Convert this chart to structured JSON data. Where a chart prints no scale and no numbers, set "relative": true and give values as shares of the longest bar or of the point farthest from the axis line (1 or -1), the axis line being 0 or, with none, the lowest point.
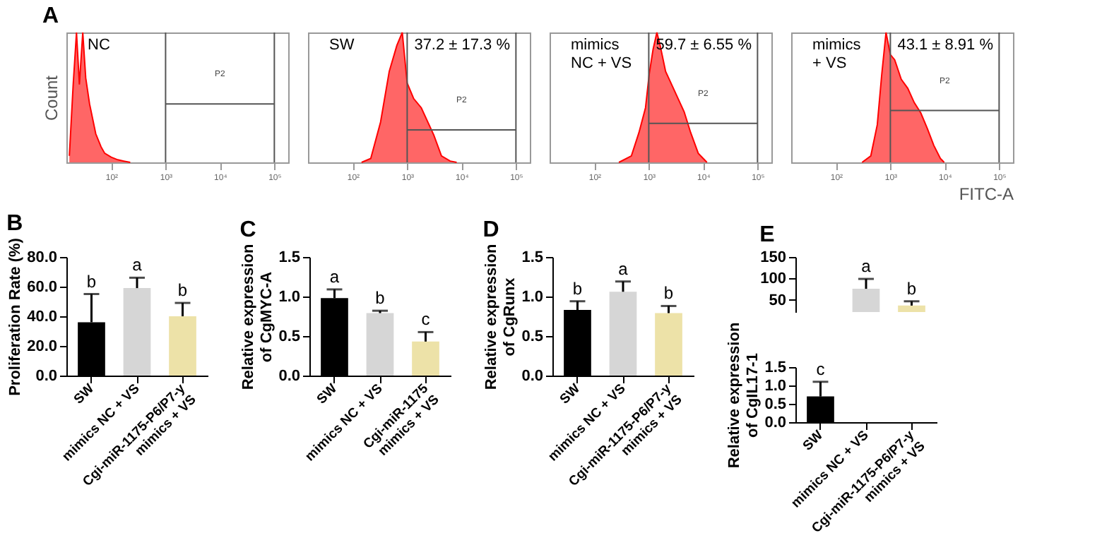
{
  "chart_data": [
    {
      "type": "area",
      "title": "A",
      "ylabel": "Count",
      "log": "x",
      "relative": true,
      "xlim": [
        15,
        180000
      ],
      "xticks": [
        {
          "value": 100,
          "label": "10²"
        },
        {
          "value": 1000,
          "label": "10³"
        },
        {
          "value": 10000,
          "label": "10⁴"
        },
        {
          "value": 100000,
          "label": "10⁵"
        }
      ],
      "x": [
        17,
        20,
        23,
        26,
        30,
        34,
        40,
        52,
        65,
        76,
        100,
        132,
        170,
        224
      ],
      "series": [
        {
          "color": "#ff0000",
          "values": [
            0.05,
            0.6,
            1.0,
            0.6,
            1.0,
            0.65,
            0.45,
            0.22,
            0.12,
            0.07,
            0.04,
            0.02,
            0.01,
            0.0
          ]
        }
      ],
      "ref_lines": [
        {
          "axis": "x",
          "value": 1000,
          "label": null
        },
        {
          "axis": "x",
          "value": 100000,
          "label": null
        },
        {
          "axis": "y",
          "value": 0.45,
          "label": "P2"
        }
      ],
      "annotations": [
        "NC"
      ]
    },
    {
      "type": "area",
      "log": "x",
      "relative": true,
      "xlim": [
        15,
        180000
      ],
      "xticks": [
        {
          "value": 100,
          "label": "10²"
        },
        {
          "value": 1000,
          "label": "10³"
        },
        {
          "value": 10000,
          "label": "10⁴"
        },
        {
          "value": 100000,
          "label": "10⁵"
        }
      ],
      "x": [
        145,
        214,
        324,
        468,
        646,
        813,
        1000,
        1320,
        1820,
        2340,
        3090,
        4270,
        6170,
        8130
      ],
      "series": [
        {
          "color": "#ff0000",
          "values": [
            0.0,
            0.03,
            0.31,
            0.7,
            0.9,
            1.0,
            0.61,
            0.49,
            0.42,
            0.32,
            0.21,
            0.05,
            0.01,
            0.0
          ]
        }
      ],
      "ref_lines": [
        {
          "axis": "x",
          "value": 1000,
          "label": null
        },
        {
          "axis": "x",
          "value": 100000,
          "label": null
        },
        {
          "axis": "y",
          "value": 0.25,
          "label": "P2"
        }
      ],
      "annotations": [
        "SW",
        "37.2 ± 17.3 %"
      ]
    },
    {
      "type": "area",
      "log": "x",
      "relative": true,
      "xlim": [
        15,
        180000
      ],
      "xticks": [
        {
          "value": 100,
          "label": "10²"
        },
        {
          "value": 1000,
          "label": "10³"
        },
        {
          "value": 10000,
          "label": "10⁴"
        },
        {
          "value": 100000,
          "label": "10⁵"
        }
      ],
      "x": [
        282,
        479,
        661,
        871,
        1020,
        1200,
        1410,
        1620,
        2040,
        2630,
        3470,
        4470,
        5890,
        8130,
        11750
      ],
      "series": [
        {
          "color": "#ff0000",
          "values": [
            0.0,
            0.05,
            0.23,
            0.42,
            0.68,
            0.87,
            1.0,
            0.9,
            0.7,
            0.6,
            0.49,
            0.39,
            0.23,
            0.07,
            0.0
          ]
        }
      ],
      "ref_lines": [
        {
          "axis": "x",
          "value": 1000,
          "label": null
        },
        {
          "axis": "x",
          "value": 100000,
          "label": null
        },
        {
          "axis": "y",
          "value": 0.3,
          "label": "P2"
        }
      ],
      "annotations": [
        "mimics\nNC + VS",
        "59.7 ± 6.55 %"
      ]
    },
    {
      "type": "area",
      "xlabel": "FITC-A",
      "log": "x",
      "relative": true,
      "xlim": [
        15,
        180000
      ],
      "xticks": [
        {
          "value": 100,
          "label": "10²"
        },
        {
          "value": 1000,
          "label": "10³"
        },
        {
          "value": 10000,
          "label": "10⁴"
        },
        {
          "value": 100000,
          "label": "10⁵"
        }
      ],
      "x": [
        302,
        437,
        575,
        692,
        832,
        1000,
        1200,
        1585,
        2090,
        2750,
        3630,
        4790,
        6310,
        8320,
        9770
      ],
      "series": [
        {
          "color": "#ff0000",
          "values": [
            0.0,
            0.05,
            0.29,
            0.67,
            1.0,
            0.83,
            0.79,
            0.64,
            0.57,
            0.46,
            0.38,
            0.26,
            0.13,
            0.03,
            0.0
          ]
        }
      ],
      "ref_lines": [
        {
          "axis": "x",
          "value": 1000,
          "label": null
        },
        {
          "axis": "x",
          "value": 100000,
          "label": null
        },
        {
          "axis": "y",
          "value": 0.4,
          "label": "P2"
        }
      ],
      "annotations": [
        "mimics\n+ VS",
        "43.1 ± 8.91 %"
      ]
    },
    {
      "type": "bar",
      "title": "B",
      "ylabel": "Proliferation Rate (%)",
      "categories": [
        "SW",
        "mimics NC + VS",
        "Cgi-miR-1175-P6/P7-y\nmimics + VS"
      ],
      "values": [
        36,
        59,
        40
      ],
      "colors": [
        "#000000",
        "#d6d6d6",
        "#ede2a8"
      ],
      "errors": [
        [
          36,
          55
        ],
        [
          59,
          66
        ],
        [
          40,
          49
        ]
      ],
      "ylim": [
        0,
        80
      ],
      "yticks": [
        {
          "value": 0,
          "label": "0.0"
        },
        {
          "value": 20,
          "label": "20.0"
        },
        {
          "value": 40,
          "label": "40.0"
        },
        {
          "value": 60,
          "label": "60.0"
        },
        {
          "value": 80,
          "label": "80.0"
        }
      ],
      "annotations": [
        {
          "text": "b",
          "x": "SW",
          "y": 55
        },
        {
          "text": "a",
          "x": "mimics NC + VS",
          "y": 66
        },
        {
          "text": "b",
          "x": "Cgi-miR-1175-P6/P7-y\nmimics + VS",
          "y": 49
        }
      ]
    },
    {
      "type": "bar",
      "title": "C",
      "ylabel": "Relative expression\nof CgMYC-A",
      "categories": [
        "SW",
        "mimics NC + VS",
        "Cgi-miR-1175\nmimics + VS"
      ],
      "values": [
        0.98,
        0.79,
        0.43
      ],
      "colors": [
        "#000000",
        "#d6d6d6",
        "#ede2a8"
      ],
      "errors": [
        [
          0.98,
          1.09
        ],
        [
          0.79,
          0.82
        ],
        [
          0.43,
          0.55
        ]
      ],
      "ylim": [
        0,
        1.5
      ],
      "yticks": [
        {
          "value": 0,
          "label": "0.0"
        },
        0.5,
        {
          "value": 1,
          "label": "1.0"
        },
        1.5
      ],
      "annotations": [
        {
          "text": "a",
          "x": "SW",
          "y": 1.09
        },
        {
          "text": "b",
          "x": "mimics NC + VS",
          "y": 0.82
        },
        {
          "text": "c",
          "x": "Cgi-miR-1175\nmimics + VS",
          "y": 0.55
        }
      ]
    },
    {
      "type": "bar",
      "title": "D",
      "ylabel": "Relative expression\nof CgRunx",
      "categories": [
        "SW",
        "mimics NC + VS",
        "Cgi-miR-1175-P6/P7-y\nmimics + VS"
      ],
      "values": [
        0.83,
        1.06,
        0.79
      ],
      "colors": [
        "#000000",
        "#d6d6d6",
        "#ede2a8"
      ],
      "errors": [
        [
          0.83,
          0.94
        ],
        [
          1.06,
          1.19
        ],
        [
          0.79,
          0.88
        ]
      ],
      "ylim": [
        0,
        1.5
      ],
      "yticks": [
        {
          "value": 0,
          "label": "0.0"
        },
        0.5,
        {
          "value": 1,
          "label": "1.0"
        },
        1.5
      ],
      "annotations": [
        {
          "text": "b",
          "x": "SW",
          "y": 0.94
        },
        {
          "text": "a",
          "x": "mimics NC + VS",
          "y": 1.19
        },
        {
          "text": "b",
          "x": "Cgi-miR-1175-P6/P7-y\nmimics + VS",
          "y": 0.88
        }
      ]
    },
    {
      "type": "bar",
      "title": "E",
      "tick_labels": "y",
      "categories": [
        "SW",
        "mimics NC + VS",
        "Cgi-miR-1175-P6/P7-y\nmimics + VS"
      ],
      "values": [
        null,
        76,
        37
      ],
      "colors": [
        "#000000",
        "#d6d6d6",
        "#ede2a8"
      ],
      "errors": [
        null,
        [
          76,
          99
        ],
        [
          37,
          47
        ]
      ],
      "ylim": [
        22,
        150
      ],
      "yticks": [
        50,
        100,
        150
      ],
      "annotations": [
        {
          "text": "a",
          "x": "mimics NC + VS",
          "y": 99
        },
        {
          "text": "b",
          "x": "Cgi-miR-1175-P6/P7-y\nmimics + VS",
          "y": 47
        }
      ]
    },
    {
      "type": "bar",
      "ylabel": "Relative expression\nof CgIL17-1",
      "categories": [
        "SW",
        "mimics NC + VS",
        "Cgi-miR-1175-P6/P7-y\nmimics + VS"
      ],
      "values": [
        0.7,
        null,
        null
      ],
      "colors": [
        "#000000",
        "#d6d6d6",
        "#ede2a8"
      ],
      "errors": [
        [
          0.7,
          1.1
        ],
        null,
        null
      ],
      "ylim": [
        0,
        1.5
      ],
      "yticks": [
        {
          "value": 0,
          "label": "0.0"
        },
        0.5,
        {
          "value": 1,
          "label": "1.0"
        },
        1.5
      ],
      "annotations": [
        {
          "text": "c",
          "x": "SW",
          "y": 1.1
        }
      ]
    }
  ]
}
